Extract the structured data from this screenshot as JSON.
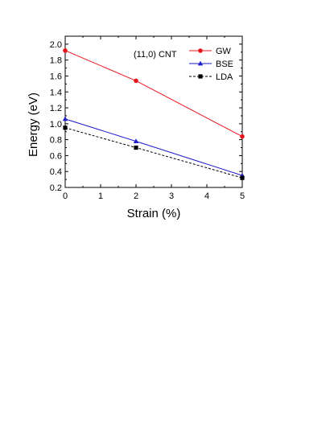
{
  "chart_data": {
    "type": "line",
    "title": "",
    "annotation": "(11,0) CNT",
    "xlabel": "Strain  (%)",
    "ylabel": "Energy  (eV)",
    "xlim": [
      0,
      5
    ],
    "ylim": [
      0.2,
      2.1
    ],
    "xticks": [
      0,
      1,
      2,
      3,
      4,
      5
    ],
    "yticks": [
      0.2,
      0.4,
      0.6,
      0.8,
      1.0,
      1.2,
      1.4,
      1.6,
      1.8,
      2.0
    ],
    "ytick_labels": [
      "0.2",
      "0.4",
      "0.6",
      "0.8",
      "1.0",
      "1.2",
      "1.4",
      "1.6",
      "1.8",
      "2.0"
    ],
    "legend_position": "top-right",
    "grid": false,
    "series": [
      {
        "name": "GW",
        "color": "#e8141c",
        "marker": "circle",
        "dash": "solid",
        "x": [
          0,
          2,
          5
        ],
        "y": [
          1.92,
          1.54,
          0.84
        ]
      },
      {
        "name": "BSE",
        "color": "#1d1dcc",
        "marker": "triangle",
        "dash": "solid",
        "x": [
          0,
          2,
          5
        ],
        "y": [
          1.06,
          0.78,
          0.35
        ]
      },
      {
        "name": "LDA",
        "color": "#000000",
        "marker": "square",
        "dash": "dashed",
        "x": [
          0,
          2,
          5
        ],
        "y": [
          0.95,
          0.7,
          0.32
        ]
      }
    ]
  }
}
